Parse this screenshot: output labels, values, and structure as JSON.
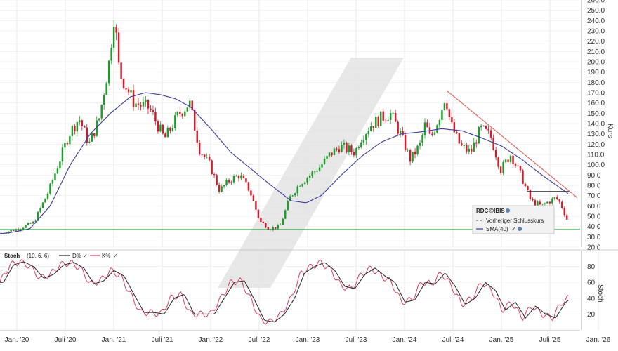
{
  "chart_data": [
    {
      "type": "candlestick",
      "instrument": "RDC@IBIS",
      "ylabel": "Kurs",
      "ylim": [
        20,
        260
      ],
      "yticks": [
        20,
        30,
        40,
        50,
        60,
        70,
        80,
        90,
        100,
        110,
        120,
        130,
        140,
        150,
        160,
        170,
        180,
        190,
        200,
        210,
        220,
        230,
        240,
        250,
        260
      ],
      "ytick_labels": [
        "20.0",
        "30.0",
        "40.0",
        "50.0",
        "60.0",
        "70.0",
        "80.0",
        "90.0",
        "100.0",
        "110.0",
        "120.0",
        "130.0",
        "140.0",
        "150.0",
        "160.0",
        "170.0",
        "180.0",
        "190.0",
        "200.0",
        "210.0",
        "220.0",
        "230.0",
        "240.0",
        "250.0",
        "260.0"
      ],
      "x_tick_labels": [
        "Jan. '20",
        "Juli '20",
        "Jan. '21",
        "Juli '21",
        "Jan. '22",
        "Juli '22",
        "Jan. '23",
        "Juli '23",
        "Jan. '24",
        "Juli '24",
        "Jan. '25",
        "Juli '25",
        "Jan. '26"
      ],
      "price_keypoints": [
        {
          "t": 0.0,
          "v": 33
        },
        {
          "t": 2.0,
          "v": 38
        },
        {
          "t": 3.5,
          "v": 44
        },
        {
          "t": 5.0,
          "v": 75
        },
        {
          "t": 7.0,
          "v": 130
        },
        {
          "t": 8.0,
          "v": 145
        },
        {
          "t": 9.0,
          "v": 120
        },
        {
          "t": 10.0,
          "v": 145
        },
        {
          "t": 11.0,
          "v": 200
        },
        {
          "t": 11.5,
          "v": 248
        },
        {
          "t": 12.0,
          "v": 190
        },
        {
          "t": 13.5,
          "v": 160
        },
        {
          "t": 15.0,
          "v": 155
        },
        {
          "t": 16.5,
          "v": 125
        },
        {
          "t": 18.0,
          "v": 150
        },
        {
          "t": 19.0,
          "v": 160
        },
        {
          "t": 20.0,
          "v": 115
        },
        {
          "t": 21.0,
          "v": 100
        },
        {
          "t": 22.0,
          "v": 75
        },
        {
          "t": 23.0,
          "v": 85
        },
        {
          "t": 24.0,
          "v": 90
        },
        {
          "t": 25.0,
          "v": 75
        },
        {
          "t": 26.0,
          "v": 45
        },
        {
          "t": 27.0,
          "v": 38
        },
        {
          "t": 28.0,
          "v": 40
        },
        {
          "t": 29.0,
          "v": 68
        },
        {
          "t": 30.0,
          "v": 82
        },
        {
          "t": 31.0,
          "v": 90
        },
        {
          "t": 32.0,
          "v": 98
        },
        {
          "t": 33.0,
          "v": 110
        },
        {
          "t": 34.0,
          "v": 118
        },
        {
          "t": 35.5,
          "v": 112
        },
        {
          "t": 36.0,
          "v": 125
        },
        {
          "t": 37.0,
          "v": 138
        },
        {
          "t": 38.0,
          "v": 145
        },
        {
          "t": 39.0,
          "v": 150
        },
        {
          "t": 40.0,
          "v": 130
        },
        {
          "t": 41.0,
          "v": 105
        },
        {
          "t": 42.0,
          "v": 120
        },
        {
          "t": 42.5,
          "v": 140
        },
        {
          "t": 43.0,
          "v": 125
        },
        {
          "t": 44.0,
          "v": 150
        },
        {
          "t": 44.5,
          "v": 168
        },
        {
          "t": 45.0,
          "v": 140
        },
        {
          "t": 46.0,
          "v": 118
        },
        {
          "t": 47.0,
          "v": 112
        },
        {
          "t": 48.0,
          "v": 135
        },
        {
          "t": 49.0,
          "v": 128
        },
        {
          "t": 50.0,
          "v": 95
        },
        {
          "t": 51.0,
          "v": 110
        },
        {
          "t": 52.0,
          "v": 90
        },
        {
          "t": 53.0,
          "v": 65
        },
        {
          "t": 54.0,
          "v": 60
        },
        {
          "t": 55.5,
          "v": 68
        },
        {
          "t": 56.0,
          "v": 62
        },
        {
          "t": 56.6,
          "v": 47
        }
      ],
      "sma40_keypoints": [
        {
          "t": 0.0,
          "v": 33
        },
        {
          "t": 1.0,
          "v": 34
        },
        {
          "t": 3.0,
          "v": 38
        },
        {
          "t": 5.0,
          "v": 60
        },
        {
          "t": 7.0,
          "v": 100
        },
        {
          "t": 9.0,
          "v": 130
        },
        {
          "t": 11.0,
          "v": 150
        },
        {
          "t": 13.0,
          "v": 166
        },
        {
          "t": 14.5,
          "v": 170
        },
        {
          "t": 16.0,
          "v": 168
        },
        {
          "t": 17.5,
          "v": 164
        },
        {
          "t": 19.0,
          "v": 156
        },
        {
          "t": 21.0,
          "v": 135
        },
        {
          "t": 23.0,
          "v": 112
        },
        {
          "t": 25.0,
          "v": 96
        },
        {
          "t": 27.0,
          "v": 80
        },
        {
          "t": 29.0,
          "v": 65
        },
        {
          "t": 30.5,
          "v": 63
        },
        {
          "t": 32.0,
          "v": 70
        },
        {
          "t": 34.0,
          "v": 90
        },
        {
          "t": 36.0,
          "v": 108
        },
        {
          "t": 38.0,
          "v": 122
        },
        {
          "t": 40.0,
          "v": 130
        },
        {
          "t": 42.0,
          "v": 132
        },
        {
          "t": 44.0,
          "v": 135
        },
        {
          "t": 46.0,
          "v": 133
        },
        {
          "t": 48.0,
          "v": 126
        },
        {
          "t": 50.0,
          "v": 118
        },
        {
          "t": 52.0,
          "v": 105
        },
        {
          "t": 54.0,
          "v": 90
        },
        {
          "t": 56.6,
          "v": 72
        }
      ],
      "support_level": 37,
      "resistance_segment": {
        "t0": 52.5,
        "t1": 56.8,
        "v": 74
      },
      "trendline": {
        "t0": 44.5,
        "v0": 172,
        "t1": 57.5,
        "v1": 68
      },
      "legend": [
        {
          "label": "RDC@IBIS",
          "icon": "info-icon"
        },
        {
          "label": "Vorheriger Schlusskurs",
          "color": "#555555",
          "style": "dashed"
        },
        {
          "label": "SMA(40)",
          "color": "#3b3b9e",
          "icon": "info-icon"
        }
      ],
      "colors": {
        "up": "#1e9b2a",
        "down": "#d11a2a",
        "sma": "#3b3b9e",
        "support": "#0a7d28",
        "trend": "#e0605a",
        "watermark": "#e7e7e7"
      }
    },
    {
      "type": "line",
      "name": "Stoch",
      "params": "(10, 6, 6)",
      "ylabel": "Stoch",
      "ylim": [
        0,
        100
      ],
      "yticks": [
        20,
        40,
        60,
        80
      ],
      "series": [
        {
          "name": "D%",
          "color": "#222222"
        },
        {
          "name": "K%",
          "color": "#d64060"
        }
      ],
      "cycle_keypoints": [
        {
          "t": 0.0,
          "v": 60
        },
        {
          "t": 1.0,
          "v": 82
        },
        {
          "t": 2.0,
          "v": 86
        },
        {
          "t": 3.0,
          "v": 80
        },
        {
          "t": 4.0,
          "v": 65
        },
        {
          "t": 5.0,
          "v": 70
        },
        {
          "t": 6.0,
          "v": 82
        },
        {
          "t": 7.0,
          "v": 85
        },
        {
          "t": 8.0,
          "v": 78
        },
        {
          "t": 9.0,
          "v": 58
        },
        {
          "t": 10.0,
          "v": 62
        },
        {
          "t": 11.0,
          "v": 75
        },
        {
          "t": 12.0,
          "v": 68
        },
        {
          "t": 13.0,
          "v": 45
        },
        {
          "t": 14.0,
          "v": 22
        },
        {
          "t": 15.0,
          "v": 22
        },
        {
          "t": 16.0,
          "v": 20
        },
        {
          "t": 17.0,
          "v": 40
        },
        {
          "t": 18.0,
          "v": 45
        },
        {
          "t": 19.0,
          "v": 20
        },
        {
          "t": 20.0,
          "v": 20
        },
        {
          "t": 21.0,
          "v": 20
        },
        {
          "t": 22.0,
          "v": 40
        },
        {
          "t": 23.0,
          "v": 60
        },
        {
          "t": 24.0,
          "v": 62
        },
        {
          "t": 25.0,
          "v": 38
        },
        {
          "t": 26.0,
          "v": 12
        },
        {
          "t": 27.0,
          "v": 10
        },
        {
          "t": 28.0,
          "v": 20
        },
        {
          "t": 29.0,
          "v": 40
        },
        {
          "t": 30.0,
          "v": 72
        },
        {
          "t": 31.0,
          "v": 80
        },
        {
          "t": 32.0,
          "v": 85
        },
        {
          "t": 33.0,
          "v": 75
        },
        {
          "t": 34.0,
          "v": 55
        },
        {
          "t": 35.0,
          "v": 52
        },
        {
          "t": 36.0,
          "v": 70
        },
        {
          "t": 37.0,
          "v": 78
        },
        {
          "t": 38.0,
          "v": 68
        },
        {
          "t": 39.0,
          "v": 60
        },
        {
          "t": 40.0,
          "v": 35
        },
        {
          "t": 41.0,
          "v": 38
        },
        {
          "t": 42.0,
          "v": 60
        },
        {
          "t": 43.0,
          "v": 58
        },
        {
          "t": 44.0,
          "v": 72
        },
        {
          "t": 45.0,
          "v": 55
        },
        {
          "t": 46.0,
          "v": 32
        },
        {
          "t": 47.0,
          "v": 40
        },
        {
          "t": 48.0,
          "v": 60
        },
        {
          "t": 49.0,
          "v": 50
        },
        {
          "t": 50.0,
          "v": 25
        },
        {
          "t": 51.0,
          "v": 35
        },
        {
          "t": 52.0,
          "v": 15
        },
        {
          "t": 53.0,
          "v": 30
        },
        {
          "t": 54.0,
          "v": 20
        },
        {
          "t": 55.0,
          "v": 15
        },
        {
          "t": 56.0,
          "v": 35
        },
        {
          "t": 56.6,
          "v": 40
        }
      ]
    }
  ]
}
